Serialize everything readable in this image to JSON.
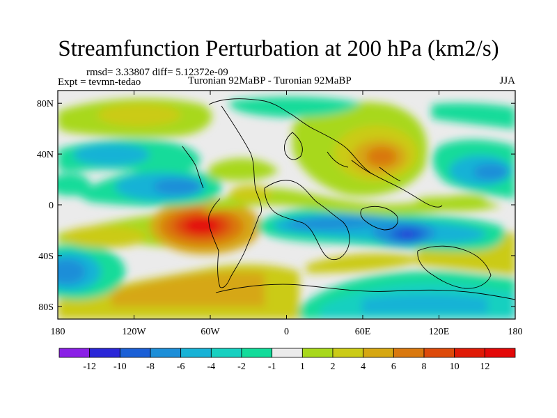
{
  "title": "Streamfunction Perturbation at 200 hPa (km2/s)",
  "stats_line": "rmsd= 3.33807 diff= 5.12372e-09",
  "experiment_line": "Expt = tevmn-tedao",
  "comparison_line": "Turonian  92MaBP - Turonian  92MaBP",
  "season": "JJA",
  "map": {
    "projection": "cylindrical-equidistant",
    "lon_range": [
      -180,
      180
    ],
    "lat_range": [
      -90,
      90
    ],
    "lon_ticks": [
      "180",
      "120W",
      "60W",
      "0",
      "60E",
      "120E",
      "180"
    ],
    "lat_ticks": [
      "80N",
      "40N",
      "0",
      "40S",
      "80S"
    ],
    "background": "#ebebeb",
    "coast_color": "#000000"
  },
  "colorbar": {
    "labels": [
      "-12",
      "-10",
      "-8",
      "-6",
      "-4",
      "-2",
      "-1",
      "1",
      "2",
      "4",
      "6",
      "8",
      "10",
      "12"
    ],
    "colors": [
      "#8a1fe6",
      "#2a26d8",
      "#1a5fd6",
      "#1c8ed8",
      "#17b2d6",
      "#16d0c0",
      "#12db9a",
      "#ebebeb",
      "#a8d81b",
      "#cbcb16",
      "#d6a712",
      "#d9780e",
      "#dd4a0a",
      "#e01a06",
      "#e30808"
    ]
  }
}
